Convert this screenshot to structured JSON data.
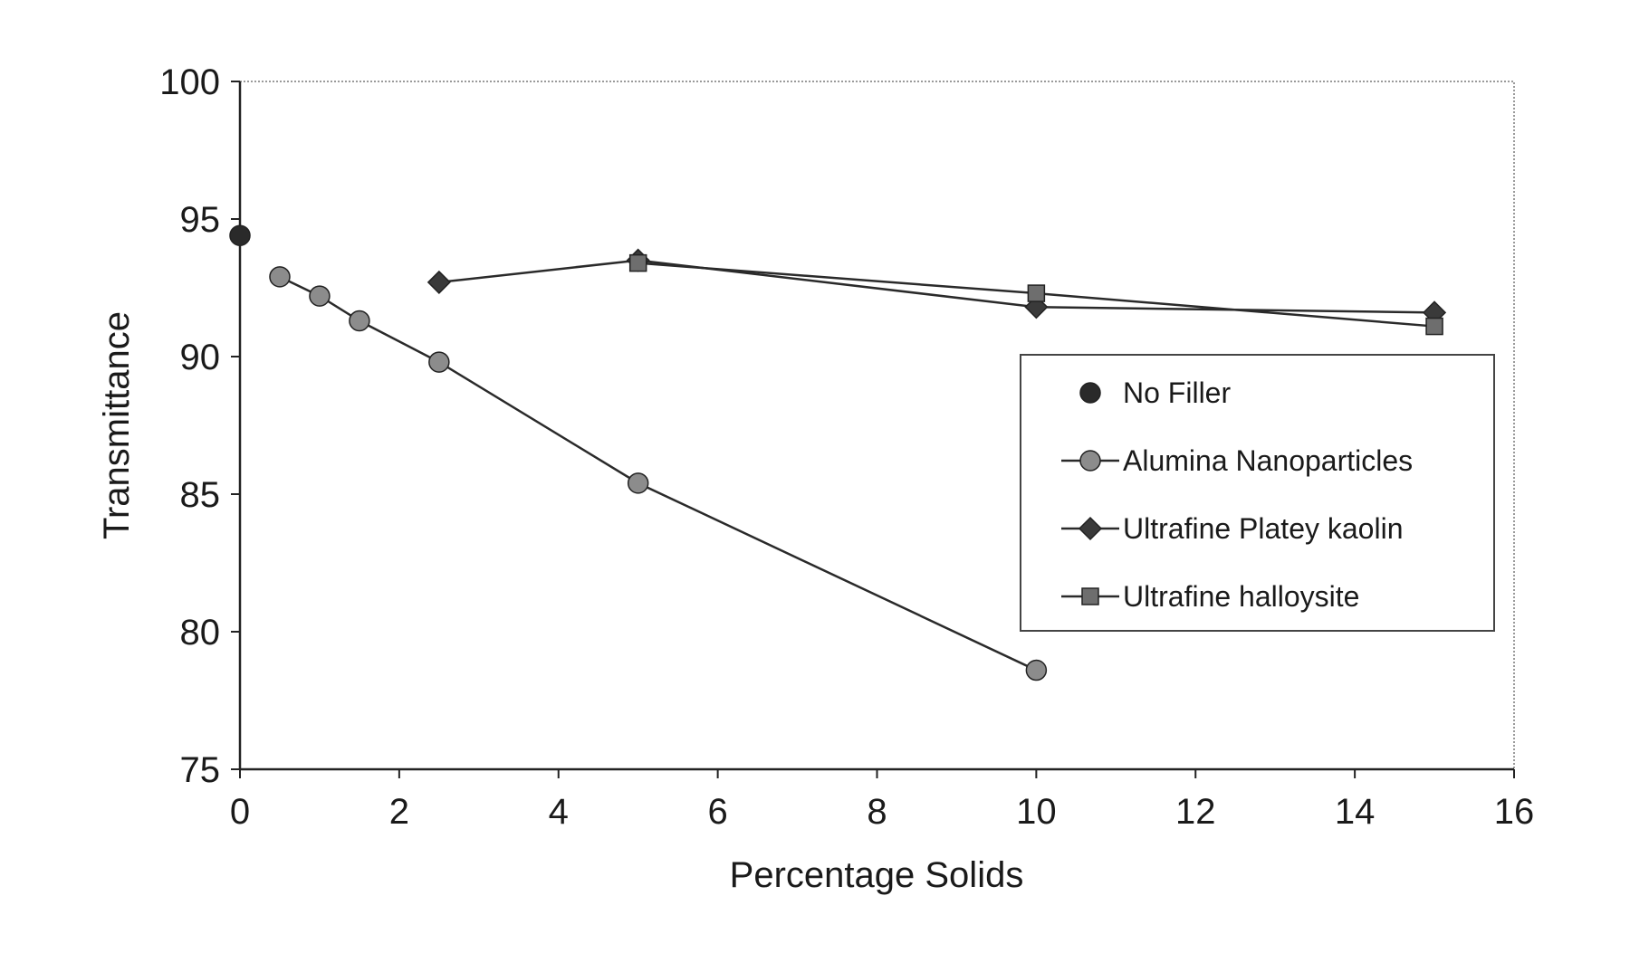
{
  "chart_data": {
    "type": "line",
    "title": "",
    "xlabel": "Percentage Solids",
    "ylabel": "Transmittance",
    "xlim": [
      0,
      16
    ],
    "ylim": [
      75,
      100
    ],
    "x_ticks": [
      0,
      2,
      4,
      6,
      8,
      10,
      12,
      14,
      16
    ],
    "y_ticks": [
      75,
      80,
      85,
      90,
      95,
      100
    ],
    "grid": false,
    "legend_position": "right",
    "series": [
      {
        "name": "No Filler",
        "marker": "circle",
        "line": false,
        "color": "#2a2a2a",
        "x": [
          0
        ],
        "y": [
          94.4
        ]
      },
      {
        "name": "Alumina Nanoparticles",
        "marker": "circle",
        "line": true,
        "color": "#8c8c8c",
        "x": [
          0.5,
          1,
          1.5,
          2.5,
          5,
          10
        ],
        "y": [
          92.9,
          92.2,
          91.3,
          89.8,
          85.4,
          78.6
        ]
      },
      {
        "name": "Ultrafine Platey kaolin",
        "marker": "diamond",
        "line": true,
        "color": "#3a3a3a",
        "x": [
          2.5,
          5,
          10,
          15
        ],
        "y": [
          92.7,
          93.5,
          91.8,
          91.6
        ]
      },
      {
        "name": "Ultrafine halloysite",
        "marker": "square",
        "line": true,
        "color": "#6e6e6e",
        "x": [
          5,
          10,
          15
        ],
        "y": [
          93.4,
          92.3,
          91.1
        ]
      }
    ]
  }
}
